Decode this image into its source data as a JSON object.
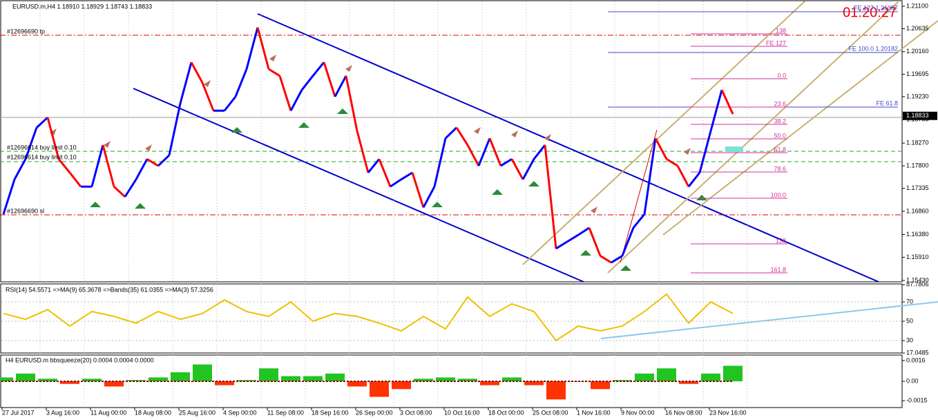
{
  "header": {
    "symbol_info": "EURUSD.m,H4  1.18910 1.18929 1.18743 1.18833"
  },
  "clock": "01:20:27",
  "order_labels": [
    "#12696690 tp",
    "#12696614 buy limit 0.10",
    "#12696614 buy limit 0.10",
    "#12696690 sl"
  ],
  "fib_labels": [
    "138",
    "FE 127",
    "0.0",
    "23.6",
    "38.2",
    "50.0",
    "61.8",
    "78.6",
    "100.0",
    "138",
    "161.8"
  ],
  "fe_labels": [
    "FE 127 1.21097",
    "FE 100.0 1.20182",
    "FE 61.8"
  ],
  "price_axis": {
    "ticks": [
      {
        "value": 1.211,
        "label": "1.21100"
      },
      1.20635,
      {
        "value": 1.2016,
        "label": "1.20160"
      },
      1.19695,
      {
        "value": 1.1923,
        "label": "1.19230"
      },
      1.18755,
      {
        "value": 1.1827,
        "label": "1.18270"
      },
      {
        "value": 1.178,
        "label": "1.17800"
      },
      1.17335,
      {
        "value": 1.1686,
        "label": "1.16860"
      },
      {
        "value": 1.1638,
        "label": "1.16380"
      },
      {
        "value": 1.1591,
        "label": "1.15910"
      },
      {
        "value": 1.1543,
        "label": "1.15430"
      }
    ],
    "current": 1.18833
  },
  "price": {
    "values": [
      1.168,
      1.1752,
      1.1794,
      1.1859,
      1.188,
      1.1794,
      1.1766,
      1.1737,
      1.1737,
      1.1823,
      1.1737,
      1.1716,
      1.1752,
      1.1794,
      1.178,
      1.1802,
      1.1909,
      1.1994,
      1.1952,
      1.1894,
      1.1894,
      1.1923,
      1.198,
      1.2066,
      1.198,
      1.1966,
      1.1894,
      1.1937,
      1.1966,
      1.1994,
      1.1923,
      1.1966,
      1.1852,
      1.1766,
      1.1794,
      1.1737,
      1.1752,
      1.1766,
      1.1694,
      1.1737,
      1.1837,
      1.1859,
      1.1823,
      1.178,
      1.1837,
      1.178,
      1.1794,
      1.1752,
      1.1794,
      1.1823,
      1.1609,
      1.1623,
      1.1637,
      1.1652,
      1.1594,
      1.158,
      1.1594,
      1.1652,
      1.168,
      1.1837,
      1.1794,
      1.178,
      1.1737,
      1.1766,
      1.1852,
      1.1937,
      1.1887
    ]
  },
  "time_axis": [
    "27 Jul 2017",
    "3 Aug 16:00",
    "11 Aug 00:00",
    "18 Aug 08:00",
    "25 Aug 16:00",
    "4 Sep 00:00",
    "11 Sep 08:00",
    "18 Sep 16:00",
    "26 Sep 00:00",
    "3 Oct 08:00",
    "10 Oct 16:00",
    "18 Oct 00:00",
    "25 Oct 08:00",
    "1 Nov 16:00",
    "9 Nov 00:00",
    "16 Nov 08:00",
    "23 Nov 16:00"
  ],
  "rsi": {
    "header": "RSI(14) 54.5571  =>MA(9) 65.3678  =>Bands(35) 61.0355  =>MA(3) 57.3256",
    "ticks": [
      87.7806,
      70,
      50,
      30,
      17.0485
    ],
    "values": [
      58,
      52,
      62,
      45,
      60,
      55,
      48,
      60,
      52,
      58,
      72,
      60,
      55,
      70,
      50,
      58,
      55,
      48,
      40,
      55,
      42,
      75,
      55,
      68,
      60,
      30,
      45,
      40,
      45,
      60,
      78,
      48,
      70,
      58
    ]
  },
  "squeeze": {
    "header": "H4 EURUSD.m bbsqueeze(20) 0.0004 0.0004 0.0000",
    "ticks": [
      0.0016,
      {
        "value": 0,
        "label": "0.00"
      },
      -0.0015
    ],
    "values": [
      0.0003,
      0.0006,
      0.0002,
      -0.0002,
      0.0002,
      -0.0004,
      0.0001,
      0.0003,
      0.0007,
      0.0013,
      -0.0003,
      0.0001,
      0.001,
      0.0004,
      0.0004,
      0.0006,
      -0.0004,
      -0.0012,
      -0.0006,
      0.0002,
      0.0003,
      0.0002,
      -0.0003,
      0.0003,
      -0.0003,
      -0.0014,
      0.0,
      -0.0006,
      0.0001,
      0.0006,
      0.001,
      -0.0002,
      0.0006,
      0.0012
    ]
  }
}
